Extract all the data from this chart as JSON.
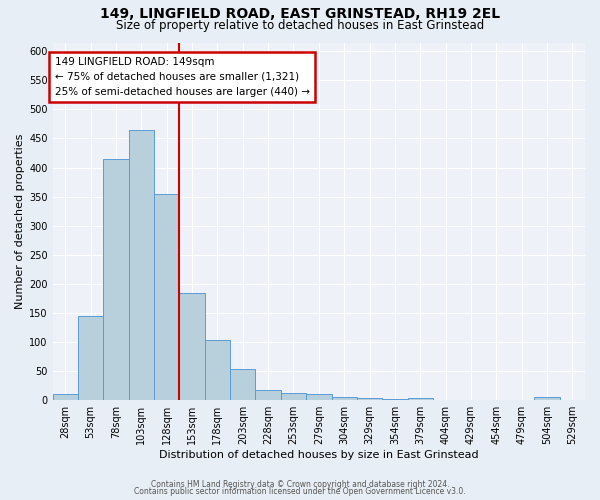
{
  "title": "149, LINGFIELD ROAD, EAST GRINSTEAD, RH19 2EL",
  "subtitle": "Size of property relative to detached houses in East Grinstead",
  "xlabel": "Distribution of detached houses by size in East Grinstead",
  "ylabel": "Number of detached properties",
  "bin_labels": [
    "28sqm",
    "53sqm",
    "78sqm",
    "103sqm",
    "128sqm",
    "153sqm",
    "178sqm",
    "203sqm",
    "228sqm",
    "253sqm",
    "279sqm",
    "304sqm",
    "329sqm",
    "354sqm",
    "379sqm",
    "404sqm",
    "429sqm",
    "454sqm",
    "479sqm",
    "504sqm",
    "529sqm"
  ],
  "bar_values": [
    10,
    145,
    415,
    465,
    355,
    185,
    103,
    53,
    18,
    13,
    10,
    5,
    3,
    2,
    4,
    0,
    0,
    0,
    0,
    5,
    0
  ],
  "bar_color": "#B8D0DC",
  "bar_edge_color": "#5B9BD5",
  "vline_x_index": 5,
  "vline_color": "#CC0000",
  "annotation_title": "149 LINGFIELD ROAD: 149sqm",
  "annotation_line1": "← 75% of detached houses are smaller (1,321)",
  "annotation_line2": "25% of semi-detached houses are larger (440) →",
  "annotation_box_color": "#CC0000",
  "ylim": [
    0,
    615
  ],
  "yticks": [
    0,
    50,
    100,
    150,
    200,
    250,
    300,
    350,
    400,
    450,
    500,
    550,
    600
  ],
  "footer_line1": "Contains HM Land Registry data © Crown copyright and database right 2024.",
  "footer_line2": "Contains public sector information licensed under the Open Government Licence v3.0.",
  "bg_color": "#E8EEF5",
  "plot_bg_color": "#EEF2F8",
  "grid_color": "#FFFFFF",
  "title_fontsize": 10,
  "subtitle_fontsize": 8.5,
  "ylabel_fontsize": 8,
  "xlabel_fontsize": 8,
  "tick_fontsize": 7,
  "footer_fontsize": 5.5
}
